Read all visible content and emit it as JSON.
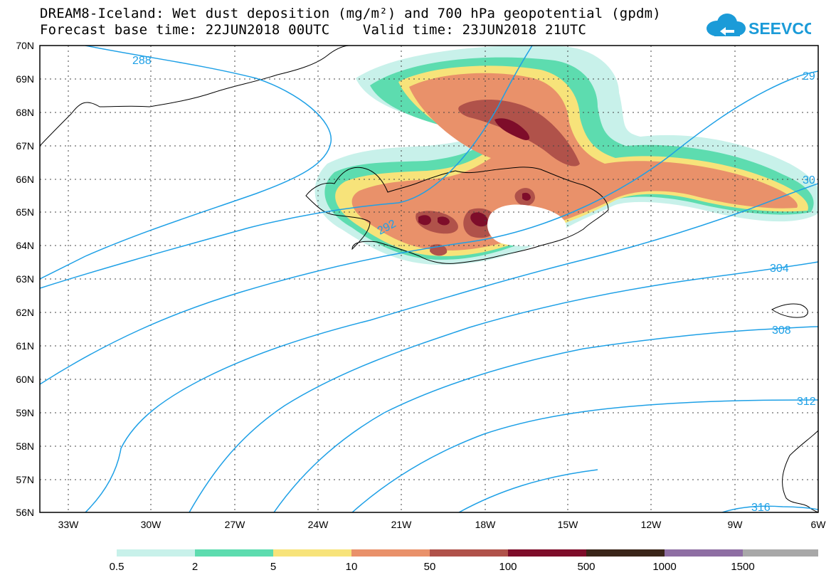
{
  "title": {
    "line1": "DREAM8-Iceland: Wet dust deposition (mg/m²) and 700 hPa geopotential (gpdm)",
    "line2": "Forecast base time: 22JUN2018 00UTC    Valid time: 23JUN2018 21UTC"
  },
  "logo": {
    "text": "SEEVCCC",
    "color": "#1b9bd8"
  },
  "axes": {
    "lat_labels": [
      "70N",
      "69N",
      "68N",
      "67N",
      "66N",
      "65N",
      "64N",
      "63N",
      "62N",
      "61N",
      "60N",
      "59N",
      "58N",
      "57N",
      "56N"
    ],
    "lon_labels": [
      "33W",
      "30W",
      "27W",
      "24W",
      "21W",
      "18W",
      "15W",
      "12W",
      "9W",
      "6W"
    ]
  },
  "contour_labels": [
    "288",
    "292",
    "29",
    "30",
    "304",
    "308",
    "312",
    "316"
  ],
  "legend": {
    "labels": [
      "0.5",
      "2",
      "5",
      "10",
      "50",
      "100",
      "500",
      "1000",
      "1500"
    ],
    "colors": [
      "#c8f1ea",
      "#5ddcaf",
      "#f7e37a",
      "#e9916a",
      "#b0524a",
      "#7e0d2a",
      "#3a2519",
      "#8e6ea3",
      "#a8a8a8"
    ]
  },
  "colors": {
    "contour": "#1ea0e6",
    "coast": "#000000",
    "grid": "#666666"
  }
}
